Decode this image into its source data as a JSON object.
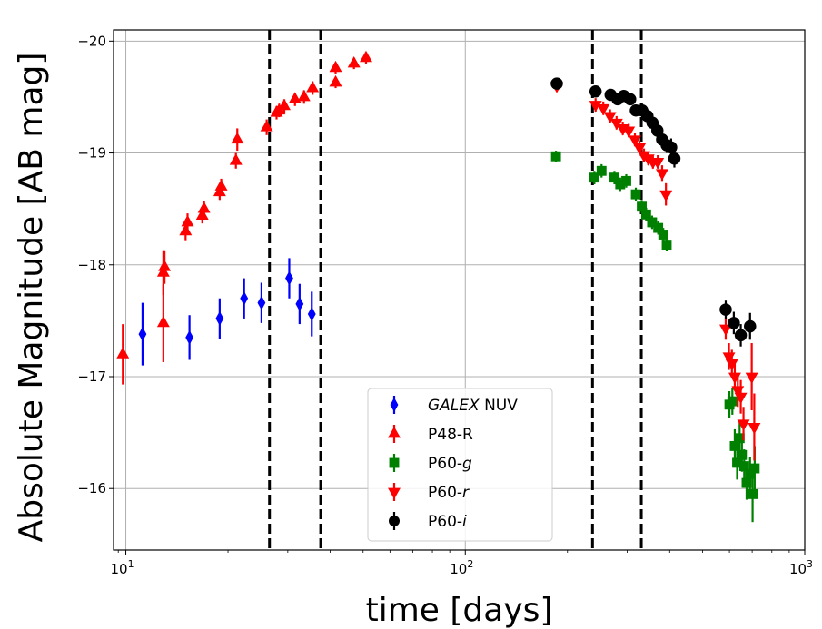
{
  "chart_data": {
    "type": "scatter",
    "xlabel": "time [days]",
    "ylabel": "Absolute Magnitude [AB mag]",
    "xscale": "log",
    "xlim": [
      9.2,
      1000
    ],
    "ylim": [
      -15.45,
      -20.1
    ],
    "y_inverted": true,
    "grid": true,
    "legend_position": "lower-center",
    "x_ticks": [
      {
        "value": 10,
        "base": "10",
        "exp": "1"
      },
      {
        "value": 100,
        "base": "10",
        "exp": "2"
      },
      {
        "value": 1000,
        "base": "10",
        "exp": "3"
      }
    ],
    "y_ticks": [
      {
        "value": -20,
        "label": "−20"
      },
      {
        "value": -19,
        "label": "−19"
      },
      {
        "value": -18,
        "label": "−18"
      },
      {
        "value": -17,
        "label": "−17"
      },
      {
        "value": -16,
        "label": "−16"
      }
    ],
    "vlines": [
      26.5,
      37.5,
      237,
      330
    ],
    "series": [
      {
        "name": "NUV",
        "name_prefix": "GALEX",
        "color": "#0000ff",
        "marker": "diamond",
        "points": [
          {
            "x": 11.2,
            "y": -17.38,
            "err": 0.28
          },
          {
            "x": 15.4,
            "y": -17.35,
            "err": 0.2
          },
          {
            "x": 18.9,
            "y": -17.52,
            "err": 0.18
          },
          {
            "x": 22.3,
            "y": -17.7,
            "err": 0.18
          },
          {
            "x": 25.1,
            "y": -17.66,
            "err": 0.18
          },
          {
            "x": 30.3,
            "y": -17.88,
            "err": 0.18
          },
          {
            "x": 32.5,
            "y": -17.65,
            "err": 0.18
          },
          {
            "x": 35.3,
            "y": -17.56,
            "err": 0.2
          }
        ]
      },
      {
        "name": "P48-R",
        "name_prefix": "",
        "color": "#ff0000",
        "marker": "triangle-up",
        "points": [
          {
            "x": 9.8,
            "y": -17.2,
            "err": 0.27
          },
          {
            "x": 12.9,
            "y": -17.48,
            "err": 0.35
          },
          {
            "x": 12.9,
            "y": -17.93,
            "err": 0.2
          },
          {
            "x": 13.0,
            "y": -17.98,
            "err": 0.15
          },
          {
            "x": 15.0,
            "y": -18.3,
            "err": 0.08
          },
          {
            "x": 15.2,
            "y": -18.38,
            "err": 0.08
          },
          {
            "x": 16.8,
            "y": -18.44,
            "err": 0.07
          },
          {
            "x": 17.0,
            "y": -18.5,
            "err": 0.07
          },
          {
            "x": 18.9,
            "y": -18.65,
            "err": 0.07
          },
          {
            "x": 19.1,
            "y": -18.7,
            "err": 0.07
          },
          {
            "x": 21.1,
            "y": -18.93,
            "err": 0.07
          },
          {
            "x": 21.3,
            "y": -19.12,
            "err": 0.1
          },
          {
            "x": 26.0,
            "y": -19.23,
            "err": 0.07
          },
          {
            "x": 27.8,
            "y": -19.36,
            "err": 0.06
          },
          {
            "x": 28.3,
            "y": -19.38,
            "err": 0.06
          },
          {
            "x": 29.3,
            "y": -19.42,
            "err": 0.06
          },
          {
            "x": 31.5,
            "y": -19.48,
            "err": 0.06
          },
          {
            "x": 33.5,
            "y": -19.5,
            "err": 0.06
          },
          {
            "x": 35.5,
            "y": -19.58,
            "err": 0.06
          },
          {
            "x": 41.5,
            "y": -19.63,
            "err": 0.05
          },
          {
            "x": 41.5,
            "y": -19.76,
            "err": 0.05
          },
          {
            "x": 47.0,
            "y": -19.8,
            "err": 0.05
          },
          {
            "x": 51.0,
            "y": -19.85,
            "err": 0.05
          }
        ]
      },
      {
        "name": "P60-",
        "name_italic": "g",
        "color": "#008000",
        "marker": "square",
        "points": [
          {
            "x": 185,
            "y": -18.97,
            "err": 0.05
          },
          {
            "x": 240,
            "y": -18.78,
            "err": 0.06
          },
          {
            "x": 252,
            "y": -18.84,
            "err": 0.06
          },
          {
            "x": 275,
            "y": -18.78,
            "err": 0.06
          },
          {
            "x": 286,
            "y": -18.72,
            "err": 0.06
          },
          {
            "x": 298,
            "y": -18.75,
            "err": 0.06
          },
          {
            "x": 318,
            "y": -18.63,
            "err": 0.06
          },
          {
            "x": 331,
            "y": -18.52,
            "err": 0.06
          },
          {
            "x": 341,
            "y": -18.45,
            "err": 0.06
          },
          {
            "x": 355,
            "y": -18.38,
            "err": 0.06
          },
          {
            "x": 370,
            "y": -18.33,
            "err": 0.06
          },
          {
            "x": 383,
            "y": -18.27,
            "err": 0.06
          },
          {
            "x": 392,
            "y": -18.18,
            "err": 0.06
          },
          {
            "x": 600,
            "y": -16.75,
            "err": 0.12
          },
          {
            "x": 612,
            "y": -16.78,
            "err": 0.12
          },
          {
            "x": 622,
            "y": -16.38,
            "err": 0.15
          },
          {
            "x": 632,
            "y": -16.23,
            "err": 0.15
          },
          {
            "x": 643,
            "y": -16.45,
            "err": 0.15
          },
          {
            "x": 653,
            "y": -16.3,
            "err": 0.15
          },
          {
            "x": 663,
            "y": -16.2,
            "err": 0.15
          },
          {
            "x": 674,
            "y": -16.05,
            "err": 0.15
          },
          {
            "x": 690,
            "y": -16.13,
            "err": 0.15
          },
          {
            "x": 702,
            "y": -15.95,
            "err": 0.25
          },
          {
            "x": 712,
            "y": -16.18,
            "err": 0.2
          }
        ]
      },
      {
        "name": "P60-",
        "name_italic": "r",
        "color": "#ff0000",
        "marker": "triangle-down",
        "points": [
          {
            "x": 186,
            "y": -19.6,
            "err": 0.05
          },
          {
            "x": 242,
            "y": -19.43,
            "err": 0.06
          },
          {
            "x": 255,
            "y": -19.4,
            "err": 0.06
          },
          {
            "x": 267,
            "y": -19.33,
            "err": 0.06
          },
          {
            "x": 279,
            "y": -19.27,
            "err": 0.06
          },
          {
            "x": 291,
            "y": -19.22,
            "err": 0.06
          },
          {
            "x": 303,
            "y": -19.2,
            "err": 0.06
          },
          {
            "x": 316,
            "y": -19.12,
            "err": 0.06
          },
          {
            "x": 326,
            "y": -19.05,
            "err": 0.06
          },
          {
            "x": 336,
            "y": -18.98,
            "err": 0.06
          },
          {
            "x": 346,
            "y": -18.95,
            "err": 0.06
          },
          {
            "x": 357,
            "y": -18.92,
            "err": 0.06
          },
          {
            "x": 369,
            "y": -18.92,
            "err": 0.06
          },
          {
            "x": 380,
            "y": -18.82,
            "err": 0.07
          },
          {
            "x": 390,
            "y": -18.63,
            "err": 0.1
          },
          {
            "x": 585,
            "y": -17.43,
            "err": 0.1
          },
          {
            "x": 598,
            "y": -17.18,
            "err": 0.12
          },
          {
            "x": 610,
            "y": -17.12,
            "err": 0.12
          },
          {
            "x": 622,
            "y": -17.0,
            "err": 0.12
          },
          {
            "x": 635,
            "y": -16.88,
            "err": 0.15
          },
          {
            "x": 648,
            "y": -16.82,
            "err": 0.15
          },
          {
            "x": 660,
            "y": -16.58,
            "err": 0.15
          },
          {
            "x": 698,
            "y": -17.0,
            "err": 0.3
          },
          {
            "x": 710,
            "y": -16.55,
            "err": 0.3
          }
        ]
      },
      {
        "name": "P60-",
        "name_italic": "i",
        "color": "#000000",
        "marker": "circle",
        "points": [
          {
            "x": 186,
            "y": -19.62,
            "err": 0.05
          },
          {
            "x": 242,
            "y": -19.55,
            "err": 0.05
          },
          {
            "x": 268,
            "y": -19.52,
            "err": 0.05
          },
          {
            "x": 281,
            "y": -19.48,
            "err": 0.05
          },
          {
            "x": 293,
            "y": -19.51,
            "err": 0.05
          },
          {
            "x": 306,
            "y": -19.48,
            "err": 0.05
          },
          {
            "x": 318,
            "y": -19.38,
            "err": 0.05
          },
          {
            "x": 332,
            "y": -19.38,
            "err": 0.06
          },
          {
            "x": 344,
            "y": -19.33,
            "err": 0.06
          },
          {
            "x": 356,
            "y": -19.27,
            "err": 0.06
          },
          {
            "x": 368,
            "y": -19.2,
            "err": 0.06
          },
          {
            "x": 380,
            "y": -19.12,
            "err": 0.06
          },
          {
            "x": 392,
            "y": -19.07,
            "err": 0.07
          },
          {
            "x": 404,
            "y": -19.05,
            "err": 0.08
          },
          {
            "x": 413,
            "y": -18.95,
            "err": 0.08
          },
          {
            "x": 585,
            "y": -17.6,
            "err": 0.08
          },
          {
            "x": 618,
            "y": -17.48,
            "err": 0.1
          },
          {
            "x": 648,
            "y": -17.37,
            "err": 0.1
          },
          {
            "x": 690,
            "y": -17.45,
            "err": 0.12
          }
        ]
      }
    ]
  }
}
